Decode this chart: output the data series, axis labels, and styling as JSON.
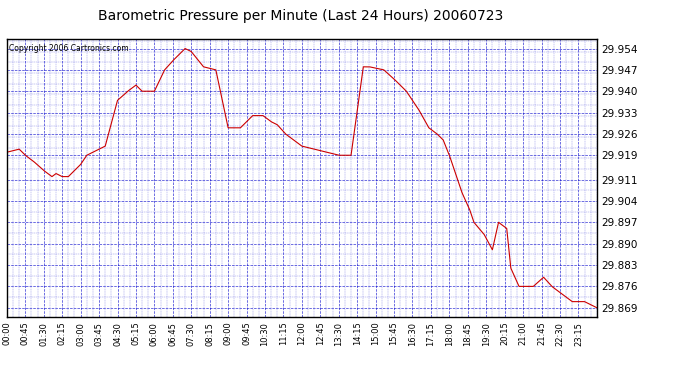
{
  "title": "Barometric Pressure per Minute (Last 24 Hours) 20060723",
  "copyright": "Copyright 2006 Cartronics.com",
  "background_color": "#ffffff",
  "plot_bg_color": "#ffffff",
  "line_color": "#cc0000",
  "grid_color": "#0000cc",
  "title_color": "#000000",
  "yticks": [
    29.869,
    29.876,
    29.883,
    29.89,
    29.897,
    29.904,
    29.911,
    29.919,
    29.926,
    29.933,
    29.94,
    29.947,
    29.954
  ],
  "ylim": [
    29.866,
    29.957
  ],
  "xtick_labels": [
    "00:00",
    "00:45",
    "01:30",
    "02:15",
    "03:00",
    "03:45",
    "04:30",
    "05:15",
    "06:00",
    "06:45",
    "07:30",
    "08:15",
    "09:00",
    "09:45",
    "10:30",
    "11:15",
    "12:00",
    "12:45",
    "13:30",
    "14:15",
    "15:00",
    "15:45",
    "16:30",
    "17:15",
    "18:00",
    "18:45",
    "19:30",
    "20:15",
    "21:00",
    "21:45",
    "22:30",
    "23:15"
  ],
  "key_times": [
    0,
    30,
    45,
    65,
    90,
    110,
    120,
    135,
    150,
    165,
    180,
    195,
    210,
    225,
    240,
    270,
    295,
    315,
    330,
    360,
    385,
    405,
    420,
    435,
    450,
    480,
    510,
    540,
    570,
    600,
    625,
    645,
    660,
    680,
    720,
    750,
    780,
    810,
    840,
    870,
    885,
    920,
    945,
    975,
    1005,
    1030,
    1050,
    1065,
    1080,
    1095,
    1110,
    1130,
    1140,
    1165,
    1185,
    1200,
    1220,
    1230,
    1250,
    1265,
    1285,
    1310,
    1330,
    1360,
    1380,
    1410,
    1440
  ],
  "key_values": [
    29.92,
    29.921,
    29.919,
    29.917,
    29.914,
    29.912,
    29.913,
    29.912,
    29.912,
    29.914,
    29.916,
    29.919,
    29.92,
    29.921,
    29.922,
    29.937,
    29.94,
    29.942,
    29.94,
    29.94,
    29.947,
    29.95,
    29.952,
    29.954,
    29.953,
    29.948,
    29.947,
    29.928,
    29.928,
    29.932,
    29.932,
    29.93,
    29.929,
    29.926,
    29.922,
    29.921,
    29.92,
    29.919,
    29.919,
    29.948,
    29.948,
    29.947,
    29.944,
    29.94,
    29.934,
    29.928,
    29.926,
    29.924,
    29.919,
    29.913,
    29.907,
    29.901,
    29.897,
    29.893,
    29.888,
    29.897,
    29.895,
    29.882,
    29.876,
    29.876,
    29.876,
    29.879,
    29.876,
    29.873,
    29.871,
    29.871,
    29.869
  ]
}
